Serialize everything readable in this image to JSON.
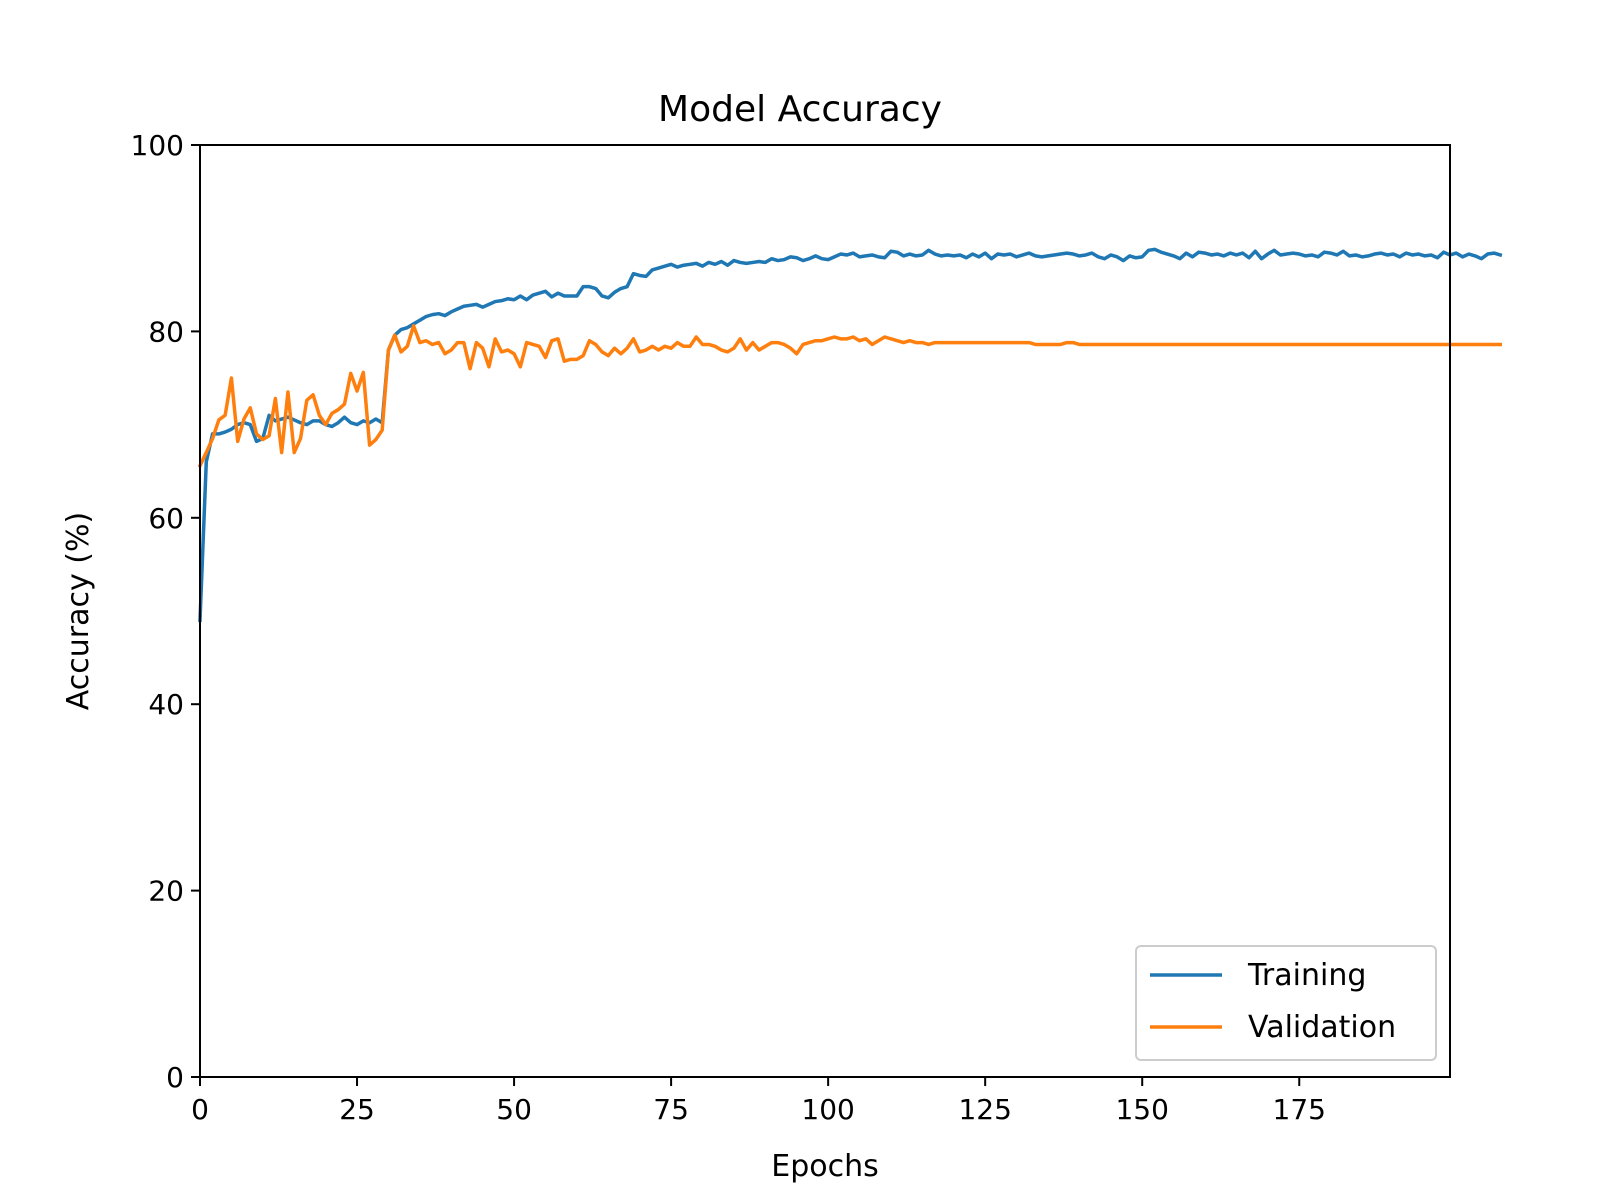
{
  "chart_data": {
    "type": "line",
    "title": "Model Accuracy",
    "xlabel": "Epochs",
    "ylabel": "Accuracy (%)",
    "xlim": [
      0,
      199
    ],
    "ylim": [
      0,
      100
    ],
    "x_ticks": [
      0,
      25,
      50,
      75,
      100,
      125,
      150,
      175
    ],
    "y_ticks": [
      0,
      20,
      40,
      60,
      80,
      100
    ],
    "grid": false,
    "legend_position": "lower-right",
    "series": [
      {
        "name": "Training",
        "color": "#1f77b4",
        "values": [
          49.0,
          66.0,
          69.0,
          69.0,
          69.2,
          69.5,
          70.0,
          70.2,
          70.0,
          68.2,
          68.5,
          71.0,
          70.4,
          70.6,
          70.8,
          70.5,
          70.2,
          70.0,
          70.4,
          70.4,
          70.0,
          69.8,
          70.2,
          70.8,
          70.2,
          70.0,
          70.4,
          70.2,
          70.6,
          70.2,
          78.0,
          79.6,
          80.2,
          80.4,
          80.8,
          81.2,
          81.6,
          81.8,
          81.9,
          81.7,
          82.1,
          82.4,
          82.7,
          82.8,
          82.9,
          82.6,
          82.9,
          83.2,
          83.3,
          83.5,
          83.4,
          83.8,
          83.4,
          83.9,
          84.1,
          84.3,
          83.7,
          84.1,
          83.8,
          83.8,
          83.8,
          84.8,
          84.8,
          84.6,
          83.8,
          83.6,
          84.2,
          84.6,
          84.8,
          86.2,
          86.0,
          85.9,
          86.6,
          86.8,
          87.0,
          87.2,
          86.9,
          87.1,
          87.2,
          87.3,
          87.0,
          87.4,
          87.2,
          87.5,
          87.1,
          87.6,
          87.4,
          87.3,
          87.4,
          87.5,
          87.4,
          87.8,
          87.6,
          87.7,
          88.0,
          87.9,
          87.6,
          87.8,
          88.1,
          87.8,
          87.7,
          88.0,
          88.3,
          88.2,
          88.4,
          88.0,
          88.1,
          88.2,
          88.0,
          87.9,
          88.6,
          88.5,
          88.1,
          88.3,
          88.1,
          88.2,
          88.7,
          88.3,
          88.1,
          88.2,
          88.1,
          88.2,
          87.9,
          88.3,
          88.0,
          88.4,
          87.8,
          88.3,
          88.2,
          88.3,
          88.0,
          88.2,
          88.4,
          88.1,
          88.0,
          88.1,
          88.2,
          88.3,
          88.4,
          88.3,
          88.1,
          88.2,
          88.4,
          88.0,
          87.8,
          88.2,
          88.0,
          87.6,
          88.1,
          87.9,
          88.0,
          88.7,
          88.8,
          88.5,
          88.3,
          88.1,
          87.8,
          88.4,
          88.0,
          88.5,
          88.4,
          88.2,
          88.3,
          88.1,
          88.4,
          88.2,
          88.4,
          87.9,
          88.6,
          87.8,
          88.3,
          88.7,
          88.2,
          88.3,
          88.4,
          88.3,
          88.1,
          88.2,
          88.0,
          88.5,
          88.4,
          88.2,
          88.6,
          88.1,
          88.2,
          88.0,
          88.1,
          88.3,
          88.4,
          88.2,
          88.3,
          88.0,
          88.4,
          88.2,
          88.3,
          88.1,
          88.2,
          87.9,
          88.5,
          88.2,
          88.4,
          88.0,
          88.3,
          88.1,
          87.8,
          88.3,
          88.4,
          88.2
        ]
      },
      {
        "name": "Validation",
        "color": "#ff7f0e",
        "values": [
          65.6,
          67.0,
          68.5,
          70.5,
          71.0,
          75.0,
          68.2,
          70.6,
          71.8,
          69.0,
          68.4,
          68.8,
          72.8,
          67.0,
          73.5,
          67.0,
          68.5,
          72.6,
          73.2,
          71.0,
          70.0,
          71.2,
          71.6,
          72.2,
          75.5,
          73.6,
          75.6,
          67.8,
          68.4,
          69.4,
          78.0,
          79.6,
          77.8,
          78.4,
          80.6,
          78.8,
          79.0,
          78.6,
          78.8,
          77.6,
          78.0,
          78.8,
          78.8,
          76.0,
          78.8,
          78.2,
          76.2,
          79.2,
          77.8,
          78.0,
          77.6,
          76.2,
          78.8,
          78.6,
          78.4,
          77.2,
          79.0,
          79.2,
          76.8,
          77.0,
          77.0,
          77.4,
          79.0,
          78.6,
          77.8,
          77.4,
          78.2,
          77.6,
          78.2,
          79.2,
          77.8,
          78.0,
          78.4,
          78.0,
          78.4,
          78.2,
          78.8,
          78.4,
          78.4,
          79.4,
          78.6,
          78.6,
          78.4,
          78.0,
          77.8,
          78.2,
          79.2,
          78.0,
          78.8,
          78.0,
          78.4,
          78.8,
          78.8,
          78.6,
          78.2,
          77.6,
          78.6,
          78.8,
          79.0,
          79.0,
          79.2,
          79.4,
          79.2,
          79.2,
          79.4,
          79.0,
          79.2,
          78.6,
          79.0,
          79.4,
          79.2,
          79.0,
          78.8,
          79.0,
          78.8,
          78.8,
          78.6,
          78.8,
          78.8,
          78.8,
          78.8,
          78.8,
          78.8,
          78.8,
          78.8,
          78.8,
          78.8,
          78.8,
          78.8,
          78.8,
          78.8,
          78.8,
          78.8,
          78.6,
          78.6,
          78.6,
          78.6,
          78.6,
          78.8,
          78.8,
          78.6,
          78.6,
          78.6,
          78.6,
          78.6,
          78.6,
          78.6,
          78.6,
          78.6,
          78.6,
          78.6,
          78.6,
          78.6,
          78.6,
          78.6,
          78.6,
          78.6,
          78.6,
          78.6,
          78.6,
          78.6,
          78.6,
          78.6,
          78.6,
          78.6,
          78.6,
          78.6,
          78.6,
          78.6,
          78.6,
          78.6,
          78.6,
          78.6,
          78.6,
          78.6,
          78.6,
          78.6,
          78.6,
          78.6,
          78.6,
          78.6,
          78.6,
          78.6,
          78.6,
          78.6,
          78.6,
          78.6,
          78.6,
          78.6,
          78.6,
          78.6,
          78.6,
          78.6,
          78.6,
          78.6,
          78.6,
          78.6,
          78.6,
          78.6,
          78.6,
          78.6,
          78.6,
          78.6,
          78.6,
          78.6,
          78.6,
          78.6,
          78.6
        ]
      }
    ]
  }
}
